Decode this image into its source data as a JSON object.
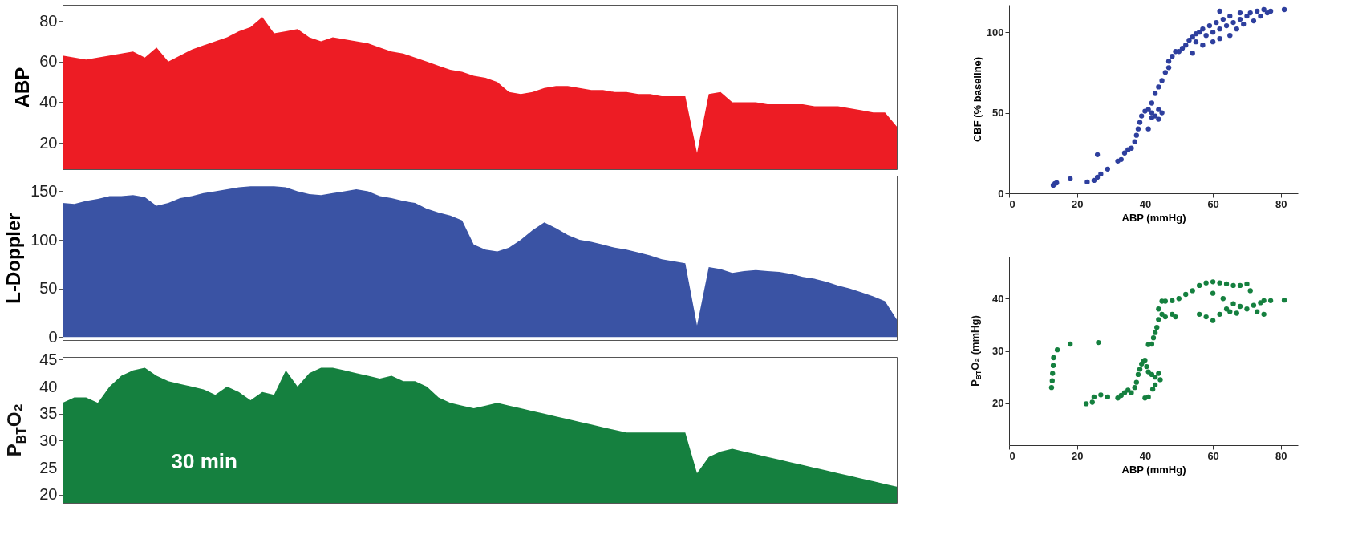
{
  "chart_data": [
    {
      "type": "area",
      "ylabel": "ABP",
      "color": "#ed1c24",
      "ylim": [
        7,
        88
      ],
      "yticks": [
        20,
        40,
        60,
        80
      ],
      "tick_labels": "y",
      "categories": [
        null,
        null,
        null,
        null,
        null,
        null,
        null,
        null,
        null,
        null,
        null,
        null,
        null,
        null,
        null,
        null,
        null,
        null,
        null,
        null,
        null,
        null,
        null,
        null,
        null,
        null,
        null,
        null,
        null,
        null,
        null,
        null,
        null,
        null,
        null,
        null,
        null,
        null,
        null,
        null,
        null,
        null,
        null,
        null,
        null,
        null,
        null,
        null,
        null,
        null,
        null,
        null,
        null,
        null,
        null,
        null,
        null,
        null,
        null,
        null,
        null,
        null,
        null,
        null,
        null,
        null,
        null,
        null,
        null,
        null,
        null,
        null
      ],
      "values": [
        63,
        62,
        61,
        62,
        63,
        64,
        65,
        62,
        67,
        60,
        63,
        66,
        68,
        70,
        72,
        75,
        77,
        82,
        74,
        75,
        76,
        72,
        70,
        72,
        71,
        70,
        69,
        67,
        65,
        64,
        62,
        60,
        58,
        56,
        55,
        53,
        52,
        50,
        45,
        44,
        45,
        47,
        48,
        48,
        47,
        46,
        46,
        45,
        45,
        44,
        44,
        43,
        43,
        43,
        15,
        44,
        45,
        40,
        40,
        40,
        39,
        39,
        39,
        39,
        38,
        38,
        38,
        37,
        36,
        35,
        35,
        28
      ]
    },
    {
      "type": "area",
      "ylabel": "L-Doppler",
      "color": "#3a53a4",
      "ylim": [
        -3,
        166
      ],
      "yticks": [
        0,
        50,
        100,
        150
      ],
      "tick_labels": "y",
      "categories": [
        null,
        null,
        null,
        null,
        null,
        null,
        null,
        null,
        null,
        null,
        null,
        null,
        null,
        null,
        null,
        null,
        null,
        null,
        null,
        null,
        null,
        null,
        null,
        null,
        null,
        null,
        null,
        null,
        null,
        null,
        null,
        null,
        null,
        null,
        null,
        null,
        null,
        null,
        null,
        null,
        null,
        null,
        null,
        null,
        null,
        null,
        null,
        null,
        null,
        null,
        null,
        null,
        null,
        null,
        null,
        null,
        null,
        null,
        null,
        null,
        null,
        null,
        null,
        null,
        null,
        null,
        null,
        null,
        null,
        null,
        null,
        null
      ],
      "values": [
        138,
        137,
        140,
        142,
        145,
        145,
        146,
        144,
        135,
        138,
        143,
        145,
        148,
        150,
        152,
        154,
        155,
        155,
        155,
        154,
        150,
        147,
        146,
        148,
        150,
        152,
        150,
        145,
        143,
        140,
        138,
        132,
        128,
        125,
        120,
        95,
        90,
        88,
        92,
        100,
        110,
        118,
        112,
        105,
        100,
        98,
        95,
        92,
        90,
        87,
        84,
        80,
        78,
        76,
        12,
        72,
        70,
        66,
        68,
        69,
        68,
        67,
        65,
        62,
        60,
        57,
        53,
        50,
        46,
        42,
        37,
        18
      ]
    },
    {
      "type": "area",
      "ylabel": "P$_{BT}$O₂",
      "color": "#15803f",
      "ylim": [
        18.5,
        45.5
      ],
      "yticks": [
        20,
        25,
        30,
        35,
        40,
        45
      ],
      "tick_labels": "y",
      "annotations": [
        "30 min"
      ],
      "categories": [
        null,
        null,
        null,
        null,
        null,
        null,
        null,
        null,
        null,
        null,
        null,
        null,
        null,
        null,
        null,
        null,
        null,
        null,
        null,
        null,
        null,
        null,
        null,
        null,
        null,
        null,
        null,
        null,
        null,
        null,
        null,
        null,
        null,
        null,
        null,
        null,
        null,
        null,
        null,
        null,
        null,
        null,
        null,
        null,
        null,
        null,
        null,
        null,
        null,
        null,
        null,
        null,
        null,
        null,
        null,
        null,
        null,
        null,
        null,
        null,
        null,
        null,
        null,
        null,
        null,
        null,
        null,
        null,
        null,
        null,
        null,
        null
      ],
      "values": [
        37,
        38,
        38,
        37,
        40,
        42,
        43,
        43.5,
        42,
        41,
        40.5,
        40,
        39.5,
        38.5,
        40,
        39,
        37.5,
        39,
        38.5,
        43,
        40,
        42.5,
        43.5,
        43.5,
        43,
        42.5,
        42,
        41.5,
        42,
        41,
        41,
        40,
        38,
        37,
        36.5,
        36,
        36.5,
        37,
        36.5,
        36,
        35.5,
        35,
        34.5,
        34,
        33.5,
        33,
        32.5,
        32,
        31.5,
        31.5,
        31.5,
        31.5,
        31.5,
        31.5,
        24,
        27,
        28,
        28.5,
        28,
        27.5,
        27,
        26.5,
        26,
        25.5,
        25,
        24.5,
        24,
        23.5,
        23,
        22.5,
        22,
        21.5
      ]
    },
    {
      "type": "scatter",
      "xlabel": "ABP (mmHg)",
      "ylabel": "CBF (% baseline)",
      "color": "#2e3f9e",
      "marker": "circle",
      "xlim": [
        0,
        85
      ],
      "ylim": [
        0,
        117
      ],
      "xticks": [
        0,
        20,
        40,
        60,
        80
      ],
      "yticks": [
        0,
        50,
        100
      ],
      "x": [
        13,
        13.5,
        14,
        18,
        23,
        25,
        26,
        26,
        27,
        29,
        32,
        33,
        34,
        35,
        36,
        37,
        37.5,
        38,
        38.5,
        39,
        40,
        41,
        42,
        43,
        44,
        45,
        41,
        42,
        43,
        44,
        45,
        46,
        47,
        47,
        48,
        49,
        50,
        51,
        52,
        53,
        54,
        55,
        55,
        56,
        57,
        57,
        58,
        59,
        60,
        60,
        61,
        62,
        62,
        63,
        64,
        65,
        65,
        66,
        67,
        68,
        68,
        69,
        70,
        71,
        72,
        73,
        74,
        75,
        76,
        77,
        81,
        62,
        54,
        44,
        42
      ],
      "values": [
        5,
        6,
        6.5,
        9,
        7,
        8,
        10,
        24,
        12,
        15,
        20,
        21,
        25,
        27,
        28,
        32,
        36,
        40,
        44,
        48,
        51,
        52,
        50,
        48,
        52,
        50,
        40,
        56,
        62,
        66,
        70,
        75,
        78,
        82,
        85,
        88,
        88,
        90,
        92,
        95,
        97,
        99,
        94,
        100,
        102,
        92,
        98,
        104,
        100,
        94,
        106,
        102,
        96,
        108,
        104,
        98,
        110,
        106,
        102,
        112,
        108,
        105,
        110,
        112,
        107,
        113,
        110,
        114,
        112,
        113,
        114,
        113,
        87,
        46,
        47
      ]
    },
    {
      "type": "scatter",
      "xlabel": "ABP (mmHg)",
      "ylabel": "P$_{BT}$O₂ (mmHg)",
      "color": "#15803f",
      "marker": "circle",
      "xlim": [
        0,
        85
      ],
      "ylim": [
        12,
        48
      ],
      "xticks": [
        0,
        20,
        40,
        60,
        80
      ],
      "yticks": [
        20,
        30,
        40
      ],
      "x": [
        12.5,
        12.7,
        12.8,
        13,
        13.1,
        14.2,
        18,
        26.3,
        22.7,
        24.5,
        25,
        27,
        29,
        32,
        33,
        34,
        35,
        36,
        37,
        37.5,
        38,
        38.5,
        39,
        39.5,
        40,
        40.5,
        41,
        42,
        43,
        44,
        44.5,
        43,
        42.3,
        40,
        41,
        41,
        42,
        42.5,
        43,
        43.5,
        44,
        45,
        46,
        48,
        49,
        44,
        45,
        46,
        48,
        50,
        52,
        54,
        56,
        58,
        60,
        62,
        64,
        66,
        68,
        70,
        71,
        56,
        58,
        60,
        62,
        64,
        66,
        68,
        70,
        72,
        74,
        75,
        77,
        81,
        60,
        63,
        65,
        67,
        73,
        75
      ],
      "values": [
        23,
        24.3,
        25.7,
        27.2,
        28.7,
        30.2,
        31.3,
        31.6,
        19.9,
        20.2,
        21.2,
        21.6,
        21.2,
        21,
        21.5,
        22,
        22.5,
        22,
        23,
        24,
        25.5,
        26.5,
        27.5,
        28,
        28.2,
        27,
        26,
        25.5,
        25,
        25.7,
        24.5,
        23.5,
        22.7,
        21,
        21.2,
        31.2,
        31.3,
        32.5,
        33.5,
        34.5,
        36,
        37,
        36.5,
        37,
        36.5,
        38,
        39.5,
        39.5,
        39.6,
        40,
        40.8,
        41.5,
        42.5,
        43,
        43.2,
        43,
        42.8,
        42.5,
        42.5,
        42.8,
        41.5,
        37,
        36.5,
        35.8,
        37,
        38,
        39,
        38.5,
        38,
        38.7,
        39.2,
        39.6,
        39.6,
        39.7,
        41,
        40,
        37.5,
        37.2,
        37.5,
        37
      ]
    }
  ]
}
